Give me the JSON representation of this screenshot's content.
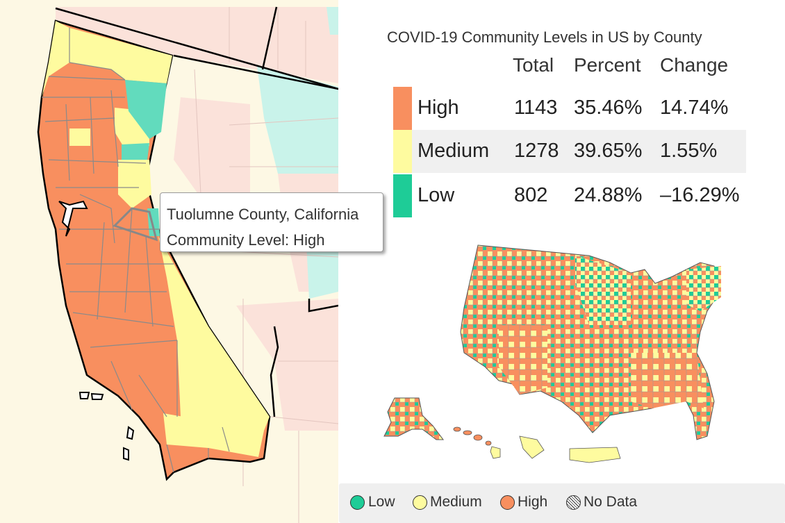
{
  "tooltip": {
    "line1": "Tuolumne County, California",
    "line2": "Community Level: High"
  },
  "panel": {
    "title": "COVID-19 Community Levels in US by County",
    "columns": {
      "total": "Total",
      "percent": "Percent",
      "change": "Change"
    },
    "rows": [
      {
        "level": "High",
        "total": "1143",
        "percent": "35.46%",
        "change": "14.74%",
        "color": "#f88f5f"
      },
      {
        "level": "Medium",
        "total": "1278",
        "percent": "39.65%",
        "change": "1.55%",
        "color": "#fefb9f"
      },
      {
        "level": "Low",
        "total": "802",
        "percent": "24.88%",
        "change": "–16.29%",
        "color": "#1ecc97"
      }
    ]
  },
  "legend": {
    "items": [
      {
        "label": "Low",
        "color": "#1ecc97"
      },
      {
        "label": "Medium",
        "color": "#fefb9f"
      },
      {
        "label": "High",
        "color": "#f88f5f"
      },
      {
        "label": "No Data",
        "color": "hatch"
      }
    ]
  },
  "colors": {
    "high": "#f88f5f",
    "medium": "#fefb9f",
    "low": "#62dbbd",
    "high_faded": "#fbe2da",
    "medium_faded": "#fdf8e4",
    "low_faded": "#c9f3ea",
    "county_border": "#8a8a8a",
    "state_border": "#000000"
  }
}
